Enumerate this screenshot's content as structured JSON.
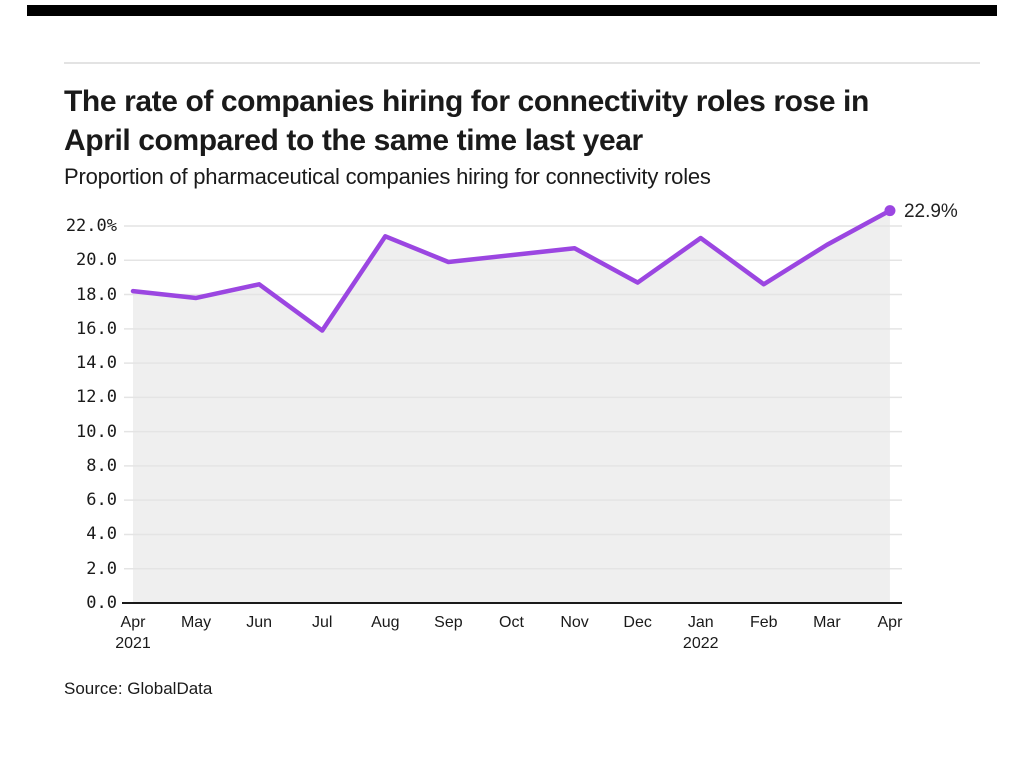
{
  "header": {
    "title_line1": "The rate of companies hiring for connectivity roles rose in",
    "title_line2": "April compared to the same time last year",
    "subtitle": "Proportion of pharmaceutical companies hiring for connectivity roles"
  },
  "footer": {
    "source": "Source: GlobalData"
  },
  "colors": {
    "top_bar": "#000000",
    "divider": "#e3e3e3",
    "line": "#9b46e1",
    "area_fill": "#efefef",
    "gridline": "#e4e4e4",
    "axis": "#1a1a1a",
    "text": "#1a1a1a"
  },
  "chart_data": {
    "type": "line",
    "title": "The rate of companies hiring for connectivity roles rose in April compared to the same time last year",
    "subtitle": "Proportion of pharmaceutical companies hiring for connectivity roles",
    "categories": [
      "Apr 2021",
      "May",
      "Jun",
      "Jul",
      "Aug",
      "Sep",
      "Oct",
      "Nov",
      "Dec",
      "Jan 2022",
      "Feb",
      "Mar",
      "Apr"
    ],
    "values": [
      18.2,
      17.8,
      18.6,
      15.9,
      21.4,
      19.9,
      20.3,
      20.7,
      18.7,
      21.3,
      18.6,
      20.9,
      22.9
    ],
    "unit": "%",
    "ylabel": "",
    "xlabel": "",
    "ylim": [
      0,
      22
    ],
    "grid": true,
    "legend": "none",
    "end_label": "22.9%",
    "x_ticks": [
      {
        "month": "Apr",
        "year": "2021"
      },
      {
        "month": "May",
        "year": ""
      },
      {
        "month": "Jun",
        "year": ""
      },
      {
        "month": "Jul",
        "year": ""
      },
      {
        "month": "Aug",
        "year": ""
      },
      {
        "month": "Sep",
        "year": ""
      },
      {
        "month": "Oct",
        "year": ""
      },
      {
        "month": "Nov",
        "year": ""
      },
      {
        "month": "Dec",
        "year": ""
      },
      {
        "month": "Jan",
        "year": "2022"
      },
      {
        "month": "Feb",
        "year": ""
      },
      {
        "month": "Mar",
        "year": ""
      },
      {
        "month": "Apr",
        "year": ""
      }
    ],
    "y_ticks": [
      {
        "value": 22,
        "label": "22.0%"
      },
      {
        "value": 20,
        "label": "20.0"
      },
      {
        "value": 18,
        "label": "18.0"
      },
      {
        "value": 16,
        "label": "16.0"
      },
      {
        "value": 14,
        "label": "14.0"
      },
      {
        "value": 12,
        "label": "12.0"
      },
      {
        "value": 10,
        "label": "10.0"
      },
      {
        "value": 8,
        "label": "8.0"
      },
      {
        "value": 6,
        "label": "6.0"
      },
      {
        "value": 4,
        "label": "4.0"
      },
      {
        "value": 2,
        "label": "2.0"
      },
      {
        "value": 0,
        "label": "0.0"
      }
    ]
  }
}
